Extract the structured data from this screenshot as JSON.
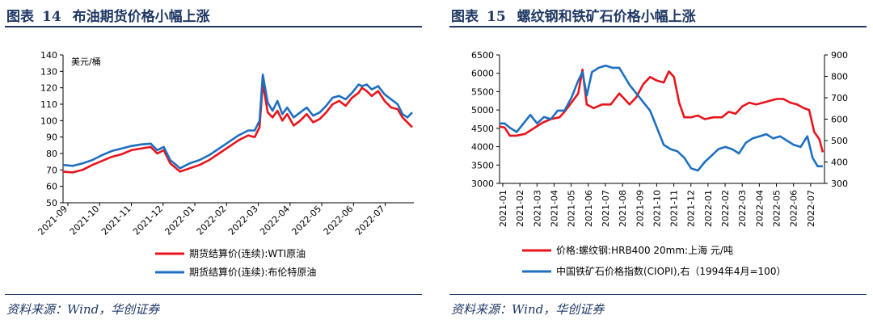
{
  "charts": [
    {
      "title_prefix": "图表",
      "number": "14",
      "title": "布油期货价格小幅上涨",
      "source": "资料来源：Wind，华创证券",
      "colors": {
        "red": "#e8141b",
        "blue": "#1e6fbf"
      },
      "chart_data": {
        "type": "line",
        "unit_label": "美元/桶",
        "ylim": [
          50,
          140
        ],
        "yticks": [
          50,
          60,
          70,
          80,
          90,
          100,
          110,
          120,
          130,
          140
        ],
        "x_tick_labels": [
          "2021-09",
          "2021-10",
          "2021-11",
          "2021-12",
          "2022-01",
          "2022-02",
          "2022-03",
          "2022-04",
          "2022-05",
          "2022-06",
          "2022-07"
        ],
        "x_positions": [
          0,
          1,
          2,
          3,
          4,
          5,
          6,
          7,
          8,
          9,
          10,
          11
        ],
        "series": [
          {
            "name": "期货结算价(连续):WTI原油",
            "color": "#e8141b",
            "x": [
              0,
              0.3,
              0.6,
              0.9,
              1.2,
              1.5,
              1.8,
              2.1,
              2.4,
              2.7,
              2.9,
              3.1,
              3.3,
              3.6,
              3.9,
              4.2,
              4.5,
              4.8,
              5.1,
              5.4,
              5.7,
              5.9,
              6.05,
              6.15,
              6.3,
              6.45,
              6.6,
              6.75,
              6.9,
              7.1,
              7.3,
              7.5,
              7.7,
              7.9,
              8.1,
              8.3,
              8.5,
              8.7,
              8.9,
              9.1,
              9.2,
              9.35,
              9.5,
              9.7,
              9.9,
              10.1,
              10.3,
              10.45,
              10.6,
              10.75
            ],
            "values": [
              69,
              68.5,
              70,
              73,
              75.5,
              78,
              79.5,
              82,
              83,
              84,
              80,
              82,
              74,
              69,
              71,
              73,
              76,
              80,
              84,
              88,
              91,
              90,
              96,
              123,
              105,
              102,
              106,
              100,
              104,
              97,
              100,
              104,
              99,
              101,
              105,
              110,
              112,
              109,
              114,
              117,
              120,
              118,
              115,
              118,
              112,
              108,
              107,
              102,
              99,
              96
            ]
          },
          {
            "name": "期货结算价(连续):布伦特原油",
            "color": "#1e6fbf",
            "x": [
              0,
              0.3,
              0.6,
              0.9,
              1.2,
              1.5,
              1.8,
              2.1,
              2.4,
              2.7,
              2.9,
              3.1,
              3.3,
              3.6,
              3.9,
              4.2,
              4.5,
              4.8,
              5.1,
              5.4,
              5.7,
              5.9,
              6.05,
              6.15,
              6.3,
              6.45,
              6.6,
              6.75,
              6.9,
              7.1,
              7.3,
              7.5,
              7.7,
              7.9,
              8.1,
              8.3,
              8.5,
              8.7,
              8.9,
              9.1,
              9.2,
              9.35,
              9.5,
              9.7,
              9.9,
              10.1,
              10.3,
              10.45,
              10.6,
              10.75
            ],
            "values": [
              73,
              72.5,
              74,
              76,
              79,
              81.5,
              83,
              84.5,
              85.5,
              86,
              82,
              84,
              76,
              71,
              74,
              76,
              79,
              83,
              87,
              91,
              94,
              94,
              100,
              128,
              111,
              106,
              112,
              104,
              108,
              102,
              105,
              108,
              103,
              105,
              109,
              114,
              115,
              113,
              117,
              122,
              121,
              122,
              119,
              121,
              116,
              113,
              110,
              104,
              102,
              105
            ]
          }
        ]
      }
    },
    {
      "title_prefix": "图表",
      "number": "15",
      "title": "螺纹钢和铁矿石价格小幅上涨",
      "source": "资料来源：Wind，华创证券",
      "colors": {
        "red": "#e8141b",
        "blue": "#1e6fbf"
      },
      "chart_data": {
        "type": "line",
        "ylim_left": [
          3000,
          6500
        ],
        "yticks_left": [
          3000,
          3500,
          4000,
          4500,
          5000,
          5500,
          6000,
          6500
        ],
        "ylim_right": [
          300,
          900
        ],
        "yticks_right": [
          300,
          400,
          500,
          600,
          700,
          800,
          900
        ],
        "x_tick_labels": [
          "2021-01",
          "2021-02",
          "2021-03",
          "2021-04",
          "2021-05",
          "2021-06",
          "2021-07",
          "2021-08",
          "2021-09",
          "2021-10",
          "2021-11",
          "2021-12",
          "2022-01",
          "2022-02",
          "2022-03",
          "2022-04",
          "2022-05",
          "2022-06",
          "2022-07"
        ],
        "series": [
          {
            "name": "价格:螺纹钢:HRB400 20mm:上海 元/吨",
            "color": "#e8141b",
            "axis": "left",
            "x": [
              0,
              0.3,
              0.6,
              1,
              1.5,
              2,
              2.5,
              3,
              3.5,
              3.8,
              4.2,
              4.6,
              4.85,
              5.1,
              5.5,
              6,
              6.5,
              7,
              7.3,
              7.6,
              8,
              8.4,
              8.8,
              9.2,
              9.6,
              9.9,
              10.2,
              10.5,
              10.8,
              11.2,
              11.6,
              12,
              12.5,
              13,
              13.4,
              13.8,
              14.2,
              14.6,
              15,
              15.4,
              15.8,
              16.2,
              16.6,
              17,
              17.4,
              17.8,
              18.1,
              18.4,
              18.7,
              18.9
            ],
            "values": [
              4550,
              4520,
              4300,
              4300,
              4350,
              4500,
              4650,
              4750,
              4800,
              4950,
              5200,
              5450,
              6100,
              5150,
              5050,
              5150,
              5150,
              5450,
              5300,
              5150,
              5350,
              5700,
              5900,
              5800,
              5750,
              6050,
              5900,
              5200,
              4800,
              4800,
              4850,
              4750,
              4800,
              4800,
              4950,
              4900,
              5100,
              5200,
              5150,
              5200,
              5250,
              5300,
              5300,
              5200,
              5150,
              5050,
              5000,
              4400,
              4200,
              3850
            ]
          },
          {
            "name": "中国铁矿石价格指数(CIOPI),右（1994年4月=100）",
            "color": "#1e6fbf",
            "axis": "right",
            "x": [
              0,
              0.3,
              0.6,
              1,
              1.4,
              1.8,
              2.2,
              2.6,
              3,
              3.4,
              3.8,
              4.2,
              4.6,
              4.85,
              5.1,
              5.4,
              5.8,
              6.2,
              6.6,
              7,
              7.3,
              7.6,
              8,
              8.4,
              8.8,
              9.2,
              9.6,
              10,
              10.4,
              10.8,
              11.2,
              11.6,
              12,
              12.4,
              12.8,
              13.2,
              13.6,
              14,
              14.4,
              14.8,
              15.2,
              15.6,
              16,
              16.4,
              16.8,
              17.2,
              17.6,
              18,
              18.3,
              18.6,
              18.9
            ],
            "values": [
              580,
              580,
              560,
              540,
              580,
              620,
              580,
              610,
              600,
              640,
              640,
              700,
              780,
              820,
              710,
              820,
              840,
              850,
              840,
              840,
              800,
              760,
              720,
              680,
              640,
              560,
              480,
              460,
              450,
              420,
              370,
              360,
              400,
              430,
              460,
              470,
              460,
              440,
              490,
              510,
              520,
              530,
              510,
              520,
              500,
              480,
              470,
              520,
              420,
              380,
              380
            ]
          }
        ]
      }
    }
  ]
}
